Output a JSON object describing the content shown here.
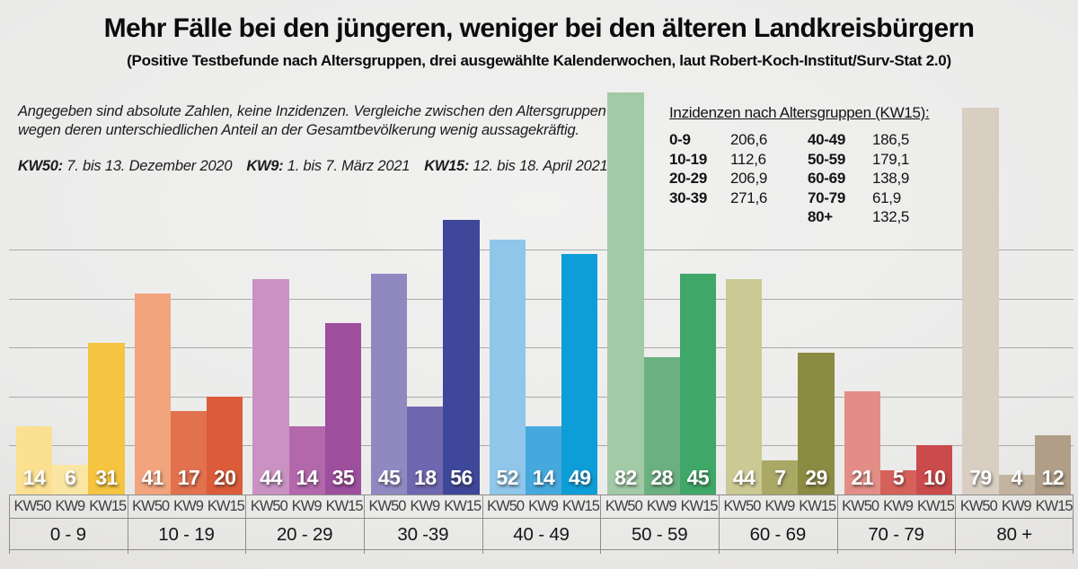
{
  "title": "Mehr Fälle bei den jüngeren, weniger bei den älteren Landkreisbürgern",
  "subtitle": "(Positive Testbefunde nach Altersgruppen, drei ausgewählte Kalenderwochen, laut Robert-Koch-Institut/Surv-Stat 2.0)",
  "note": {
    "line1": "Angegeben sind absolute Zahlen, keine Inzidenzen. Vergleiche zwischen den Altersgruppen sind",
    "line2": "wegen deren unterschiedlichen Anteil an der Gesamtbevölkerung wenig aussagekräftig."
  },
  "legend": [
    {
      "label": "KW50:",
      "text": "7. bis 13. Dezember 2020"
    },
    {
      "label": "KW9:",
      "text": "1. bis 7. März 2021"
    },
    {
      "label": "KW15:",
      "text": "12. bis 18. April 2021"
    }
  ],
  "incidence": {
    "heading": "Inzidenzen nach Altersgruppen (KW15):",
    "rows": [
      [
        "0-9",
        "206,6",
        "40-49",
        "186,5"
      ],
      [
        "10-19",
        "112,6",
        "50-59",
        "179,1"
      ],
      [
        "20-29",
        "206,9",
        "60-69",
        "138,9"
      ],
      [
        "30-39",
        "271,6",
        "70-79",
        "61,9"
      ],
      [
        "",
        "",
        "80+",
        "132,5"
      ]
    ]
  },
  "chart_data": {
    "type": "bar",
    "title": "Positive Testbefunde nach Altersgruppen",
    "categories": [
      "0 - 9",
      "10 - 19",
      "20 - 29",
      "30 -39",
      "40 - 49",
      "50 - 59",
      "60 - 69",
      "70 - 79",
      "80 +"
    ],
    "series_labels": [
      "KW50",
      "KW9",
      "KW15"
    ],
    "series": [
      {
        "name": "KW50",
        "values": [
          14,
          41,
          44,
          45,
          52,
          82,
          44,
          21,
          79
        ]
      },
      {
        "name": "KW9",
        "values": [
          6,
          17,
          14,
          18,
          14,
          28,
          7,
          5,
          4
        ]
      },
      {
        "name": "KW15",
        "values": [
          31,
          20,
          35,
          56,
          49,
          45,
          29,
          10,
          12
        ]
      }
    ],
    "group_colors": [
      [
        "#FBE091",
        "#FAE6A2",
        "#F5C440"
      ],
      [
        "#F2A47C",
        "#E2714E",
        "#DC5B39"
      ],
      [
        "#C992C3",
        "#B368AC",
        "#9D4E9D"
      ],
      [
        "#9089C1",
        "#6F67AF",
        "#3E4799"
      ],
      [
        "#8FC6E9",
        "#45A9DE",
        "#0D9ED8"
      ],
      [
        "#A2CAA7",
        "#6BB080",
        "#3FA768"
      ],
      [
        "#CBC994",
        "#A9A865",
        "#8C8B42"
      ],
      [
        "#E28E86",
        "#D6615B",
        "#CB4A4C"
      ],
      [
        "#D8CEC2",
        "#C3B4A2",
        "#B09E88"
      ]
    ],
    "ylim": [
      0,
      83.5
    ],
    "gridline_values": [
      10,
      20,
      30,
      40,
      50
    ],
    "grid": true,
    "ylabel": "",
    "xlabel": "",
    "legend_position": "below-bars",
    "value_label_color": "#ffffff"
  }
}
